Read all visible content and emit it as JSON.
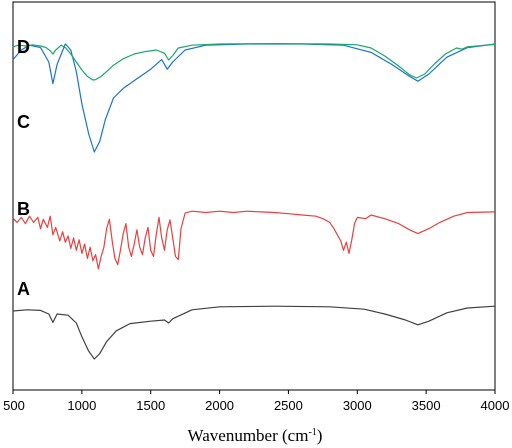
{
  "chart_data": {
    "type": "line",
    "title": "",
    "xlabel": "Wavenumber (cm",
    "xlabel_sup": "-1",
    "xlabel_close": ")",
    "ylabel": "",
    "xlim": [
      500,
      4000
    ],
    "x_ticks": [
      500,
      1000,
      1500,
      2000,
      2500,
      3000,
      3500,
      4000
    ],
    "yaxis_visible_ticks": false,
    "grid": false,
    "legend": "none",
    "series": [
      {
        "name": "A",
        "color": "#404040",
        "offset": 0,
        "points": [
          [
            500,
            0.85
          ],
          [
            600,
            0.87
          ],
          [
            700,
            0.86
          ],
          [
            760,
            0.8
          ],
          [
            790,
            0.66
          ],
          [
            820,
            0.8
          ],
          [
            900,
            0.78
          ],
          [
            960,
            0.65
          ],
          [
            1000,
            0.42
          ],
          [
            1050,
            0.18
          ],
          [
            1090,
            0.05
          ],
          [
            1130,
            0.14
          ],
          [
            1180,
            0.34
          ],
          [
            1250,
            0.52
          ],
          [
            1350,
            0.64
          ],
          [
            1500,
            0.68
          ],
          [
            1600,
            0.7
          ],
          [
            1630,
            0.65
          ],
          [
            1660,
            0.72
          ],
          [
            1800,
            0.87
          ],
          [
            2000,
            0.92
          ],
          [
            2400,
            0.93
          ],
          [
            2800,
            0.92
          ],
          [
            3050,
            0.88
          ],
          [
            3200,
            0.8
          ],
          [
            3350,
            0.7
          ],
          [
            3440,
            0.62
          ],
          [
            3520,
            0.68
          ],
          [
            3650,
            0.82
          ],
          [
            3800,
            0.9
          ],
          [
            4000,
            0.93
          ]
        ]
      },
      {
        "name": "B",
        "color": "#e84040",
        "offset": 1,
        "points": [
          [
            500,
            0.87
          ],
          [
            530,
            0.8
          ],
          [
            560,
            0.88
          ],
          [
            590,
            0.78
          ],
          [
            620,
            0.9
          ],
          [
            650,
            0.8
          ],
          [
            680,
            0.88
          ],
          [
            700,
            0.7
          ],
          [
            720,
            0.85
          ],
          [
            750,
            0.72
          ],
          [
            770,
            0.9
          ],
          [
            790,
            0.6
          ],
          [
            810,
            0.72
          ],
          [
            840,
            0.5
          ],
          [
            860,
            0.65
          ],
          [
            880,
            0.48
          ],
          [
            900,
            0.58
          ],
          [
            920,
            0.38
          ],
          [
            940,
            0.55
          ],
          [
            960,
            0.35
          ],
          [
            980,
            0.52
          ],
          [
            1000,
            0.3
          ],
          [
            1020,
            0.45
          ],
          [
            1040,
            0.22
          ],
          [
            1060,
            0.4
          ],
          [
            1080,
            0.18
          ],
          [
            1100,
            0.28
          ],
          [
            1120,
            0.05
          ],
          [
            1140,
            0.25
          ],
          [
            1160,
            0.4
          ],
          [
            1180,
            0.7
          ],
          [
            1200,
            0.85
          ],
          [
            1220,
            0.5
          ],
          [
            1240,
            0.22
          ],
          [
            1260,
            0.12
          ],
          [
            1280,
            0.35
          ],
          [
            1300,
            0.62
          ],
          [
            1320,
            0.78
          ],
          [
            1340,
            0.4
          ],
          [
            1360,
            0.25
          ],
          [
            1380,
            0.45
          ],
          [
            1400,
            0.68
          ],
          [
            1420,
            0.4
          ],
          [
            1440,
            0.28
          ],
          [
            1460,
            0.55
          ],
          [
            1480,
            0.72
          ],
          [
            1500,
            0.35
          ],
          [
            1520,
            0.25
          ],
          [
            1540,
            0.6
          ],
          [
            1560,
            0.88
          ],
          [
            1580,
            0.55
          ],
          [
            1600,
            0.35
          ],
          [
            1620,
            0.68
          ],
          [
            1640,
            0.84
          ],
          [
            1660,
            0.55
          ],
          [
            1680,
            0.25
          ],
          [
            1700,
            0.2
          ],
          [
            1720,
            0.7
          ],
          [
            1750,
            0.95
          ],
          [
            1800,
            0.98
          ],
          [
            1900,
            0.96
          ],
          [
            2000,
            0.98
          ],
          [
            2100,
            0.96
          ],
          [
            2200,
            0.98
          ],
          [
            2300,
            0.97
          ],
          [
            2400,
            0.96
          ],
          [
            2500,
            0.94
          ],
          [
            2600,
            0.92
          ],
          [
            2700,
            0.9
          ],
          [
            2750,
            0.86
          ],
          [
            2800,
            0.8
          ],
          [
            2830,
            0.7
          ],
          [
            2860,
            0.58
          ],
          [
            2880,
            0.5
          ],
          [
            2900,
            0.35
          ],
          [
            2920,
            0.48
          ],
          [
            2940,
            0.3
          ],
          [
            2960,
            0.52
          ],
          [
            2980,
            0.78
          ],
          [
            3000,
            0.88
          ],
          [
            3060,
            0.86
          ],
          [
            3100,
            0.92
          ],
          [
            3200,
            0.86
          ],
          [
            3300,
            0.78
          ],
          [
            3380,
            0.68
          ],
          [
            3440,
            0.62
          ],
          [
            3520,
            0.7
          ],
          [
            3600,
            0.8
          ],
          [
            3700,
            0.9
          ],
          [
            3800,
            0.96
          ],
          [
            4000,
            0.97
          ]
        ]
      },
      {
        "name": "C",
        "color": "#1a73d1",
        "offset": 2,
        "points": [
          [
            500,
            0.82
          ],
          [
            560,
            0.9
          ],
          [
            620,
            0.94
          ],
          [
            700,
            0.92
          ],
          [
            760,
            0.8
          ],
          [
            790,
            0.62
          ],
          [
            820,
            0.78
          ],
          [
            880,
            0.95
          ],
          [
            920,
            0.9
          ],
          [
            960,
            0.72
          ],
          [
            1000,
            0.45
          ],
          [
            1050,
            0.2
          ],
          [
            1090,
            0.05
          ],
          [
            1130,
            0.14
          ],
          [
            1170,
            0.32
          ],
          [
            1230,
            0.5
          ],
          [
            1300,
            0.58
          ],
          [
            1400,
            0.66
          ],
          [
            1500,
            0.74
          ],
          [
            1580,
            0.82
          ],
          [
            1620,
            0.74
          ],
          [
            1660,
            0.8
          ],
          [
            1750,
            0.9
          ],
          [
            1900,
            0.94
          ],
          [
            2200,
            0.95
          ],
          [
            2600,
            0.95
          ],
          [
            2900,
            0.94
          ],
          [
            3100,
            0.88
          ],
          [
            3250,
            0.78
          ],
          [
            3380,
            0.68
          ],
          [
            3440,
            0.64
          ],
          [
            3520,
            0.7
          ],
          [
            3650,
            0.84
          ],
          [
            3800,
            0.92
          ],
          [
            4000,
            0.95
          ]
        ]
      },
      {
        "name": "D",
        "color": "#19a86a",
        "offset": 3,
        "points": [
          [
            500,
            0.88
          ],
          [
            540,
            0.92
          ],
          [
            600,
            0.9
          ],
          [
            640,
            0.93
          ],
          [
            700,
            0.9
          ],
          [
            740,
            0.86
          ],
          [
            770,
            0.78
          ],
          [
            790,
            0.7
          ],
          [
            810,
            0.8
          ],
          [
            850,
            0.92
          ],
          [
            880,
            0.86
          ],
          [
            920,
            0.7
          ],
          [
            960,
            0.5
          ],
          [
            1000,
            0.3
          ],
          [
            1040,
            0.14
          ],
          [
            1080,
            0.05
          ],
          [
            1100,
            0.06
          ],
          [
            1140,
            0.14
          ],
          [
            1180,
            0.26
          ],
          [
            1230,
            0.42
          ],
          [
            1300,
            0.58
          ],
          [
            1380,
            0.7
          ],
          [
            1460,
            0.76
          ],
          [
            1540,
            0.8
          ],
          [
            1600,
            0.72
          ],
          [
            1630,
            0.55
          ],
          [
            1660,
            0.66
          ],
          [
            1700,
            0.85
          ],
          [
            1800,
            0.92
          ],
          [
            2000,
            0.95
          ],
          [
            2400,
            0.96
          ],
          [
            2800,
            0.95
          ],
          [
            3000,
            0.93
          ],
          [
            3100,
            0.85
          ],
          [
            3200,
            0.65
          ],
          [
            3300,
            0.4
          ],
          [
            3380,
            0.18
          ],
          [
            3430,
            0.1
          ],
          [
            3490,
            0.2
          ],
          [
            3560,
            0.45
          ],
          [
            3640,
            0.7
          ],
          [
            3720,
            0.85
          ],
          [
            3760,
            0.82
          ],
          [
            3800,
            0.88
          ],
          [
            4000,
            0.94
          ]
        ]
      }
    ]
  }
}
